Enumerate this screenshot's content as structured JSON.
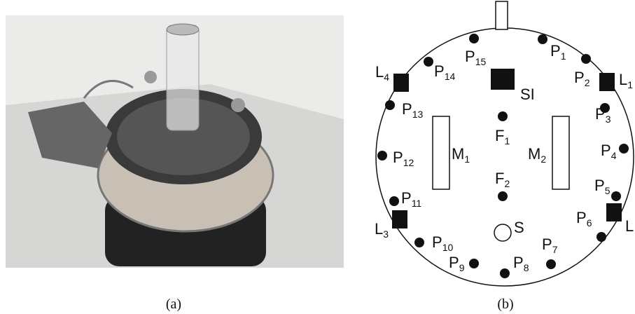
{
  "captions": [
    "(a)",
    "(b)"
  ],
  "diagram": {
    "nodes": [
      {
        "label": "P",
        "sub": "1"
      },
      {
        "label": "P",
        "sub": "2"
      },
      {
        "label": "L",
        "sub": "1"
      },
      {
        "label": "P",
        "sub": "3"
      },
      {
        "label": "P",
        "sub": "4"
      },
      {
        "label": "P",
        "sub": "5"
      },
      {
        "label": "L"
      },
      {
        "label": "P",
        "sub": "6"
      },
      {
        "label": "P",
        "sub": "7"
      },
      {
        "label": "P",
        "sub": "8"
      },
      {
        "label": "P",
        "sub": "9"
      },
      {
        "label": "P",
        "sub": "10"
      },
      {
        "label": "P",
        "sub": "11"
      },
      {
        "label": "L",
        "sub": "3"
      },
      {
        "label": "P",
        "sub": "12"
      },
      {
        "label": "P",
        "sub": "13"
      },
      {
        "label": "L",
        "sub": "4"
      },
      {
        "label": "P",
        "sub": "14"
      },
      {
        "label": "P",
        "sub": "15"
      },
      {
        "label": "SI"
      },
      {
        "label": "F",
        "sub": "1"
      },
      {
        "label": "F",
        "sub": "2"
      },
      {
        "label": "S"
      },
      {
        "label": "M",
        "sub": "1"
      },
      {
        "label": "M",
        "sub": "2"
      }
    ]
  }
}
